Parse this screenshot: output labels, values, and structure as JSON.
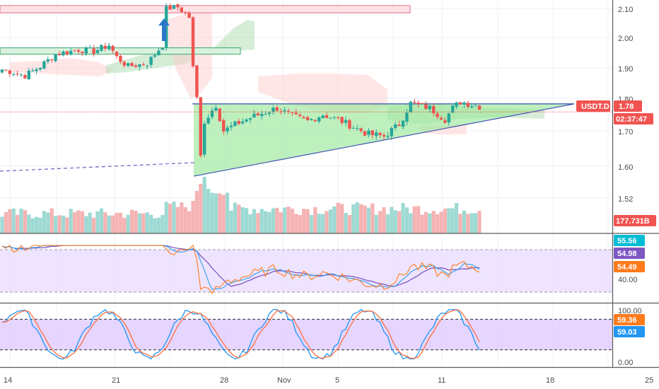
{
  "chart_data": {
    "type": "candlestick",
    "symbol": "USDT.D",
    "last_price": "1.78",
    "countdown": "02:37:47",
    "volume_last": "177.731B",
    "colors": {
      "up": "#26a69a",
      "down": "#ef5350",
      "triangle_fill": "#9be89b",
      "badge_red": "#f05350",
      "rsi_fill": "#e8d8ff",
      "stoch_fill": "#dcc7ff",
      "rsi_line": "#ff7b1c",
      "rsi_ma": "#7e57c2",
      "rsi_sig": "#2fa1ef",
      "stoch_k": "#2196f3",
      "stoch_d": "#ff6d3f"
    },
    "x_ticks": [
      "14",
      "21",
      "28",
      "Nov",
      "5",
      "11",
      "18",
      "25"
    ],
    "price_axis": {
      "ticks": [
        "2.10",
        "2.00",
        "1.90",
        "1.80",
        "1.70",
        "1.60",
        "1.52"
      ],
      "badges": [
        "USDT.D",
        "1.78",
        "02:37:47",
        "177.731B"
      ]
    },
    "rsi_panel": {
      "ticks": [
        "40.00"
      ],
      "badges": [
        "55.56",
        "54.98",
        "54.49"
      ],
      "levels": [
        70,
        30
      ]
    },
    "stoch_panel": {
      "ticks": [
        "100.00",
        "0.00"
      ],
      "badges": [
        "59.36",
        "59.03"
      ],
      "levels": [
        80,
        20
      ]
    },
    "annotations": {
      "resistance_zone_top": 2.11,
      "resistance_zone_bottom": 2.085,
      "mid_zone_top": 1.966,
      "mid_zone_bottom": 1.945,
      "triangle_top": 1.785,
      "triangle_low": 1.575,
      "dashed_support": 1.61,
      "arrow": "up-arrow"
    }
  }
}
